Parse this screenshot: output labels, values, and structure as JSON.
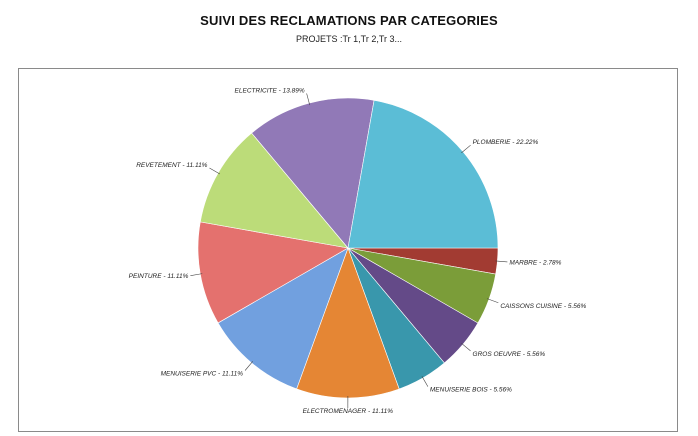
{
  "chart_data": {
    "type": "pie",
    "title": "SUIVI DES RECLAMATIONS PAR CATEGORIES",
    "subtitle": "PROJETS :Tr 1,Tr 2,Tr 3...",
    "start_direction": "east",
    "direction": "clockwise",
    "slices": [
      {
        "label": "MARBRE - 2.78%",
        "value": 2.78,
        "color": "#a23b32"
      },
      {
        "label": "CAISSONS CUISINE - 5.56%",
        "value": 5.56,
        "color": "#7b9d39"
      },
      {
        "label": "GROS OEUVRE - 5.56%",
        "value": 5.56,
        "color": "#644a88"
      },
      {
        "label": "MENUISERIE BOIS - 5.56%",
        "value": 5.56,
        "color": "#3997ac"
      },
      {
        "label": "ELECTROMENAGER - 11.11%",
        "value": 11.11,
        "color": "#e58634"
      },
      {
        "label": "MENUISERIE PVC - 11.11%",
        "value": 11.11,
        "color": "#71a0df"
      },
      {
        "label": "PEINTURE - 11.11%",
        "value": 11.11,
        "color": "#e4716e"
      },
      {
        "label": "REVETEMENT - 11.11%",
        "value": 11.11,
        "color": "#bcdc79"
      },
      {
        "label": "ELECTRICITE - 13.89%",
        "value": 13.89,
        "color": "#9179b7"
      },
      {
        "label": "PLOMBERIE - 22.22%",
        "value": 22.22,
        "color": "#5bbdd6"
      }
    ]
  }
}
